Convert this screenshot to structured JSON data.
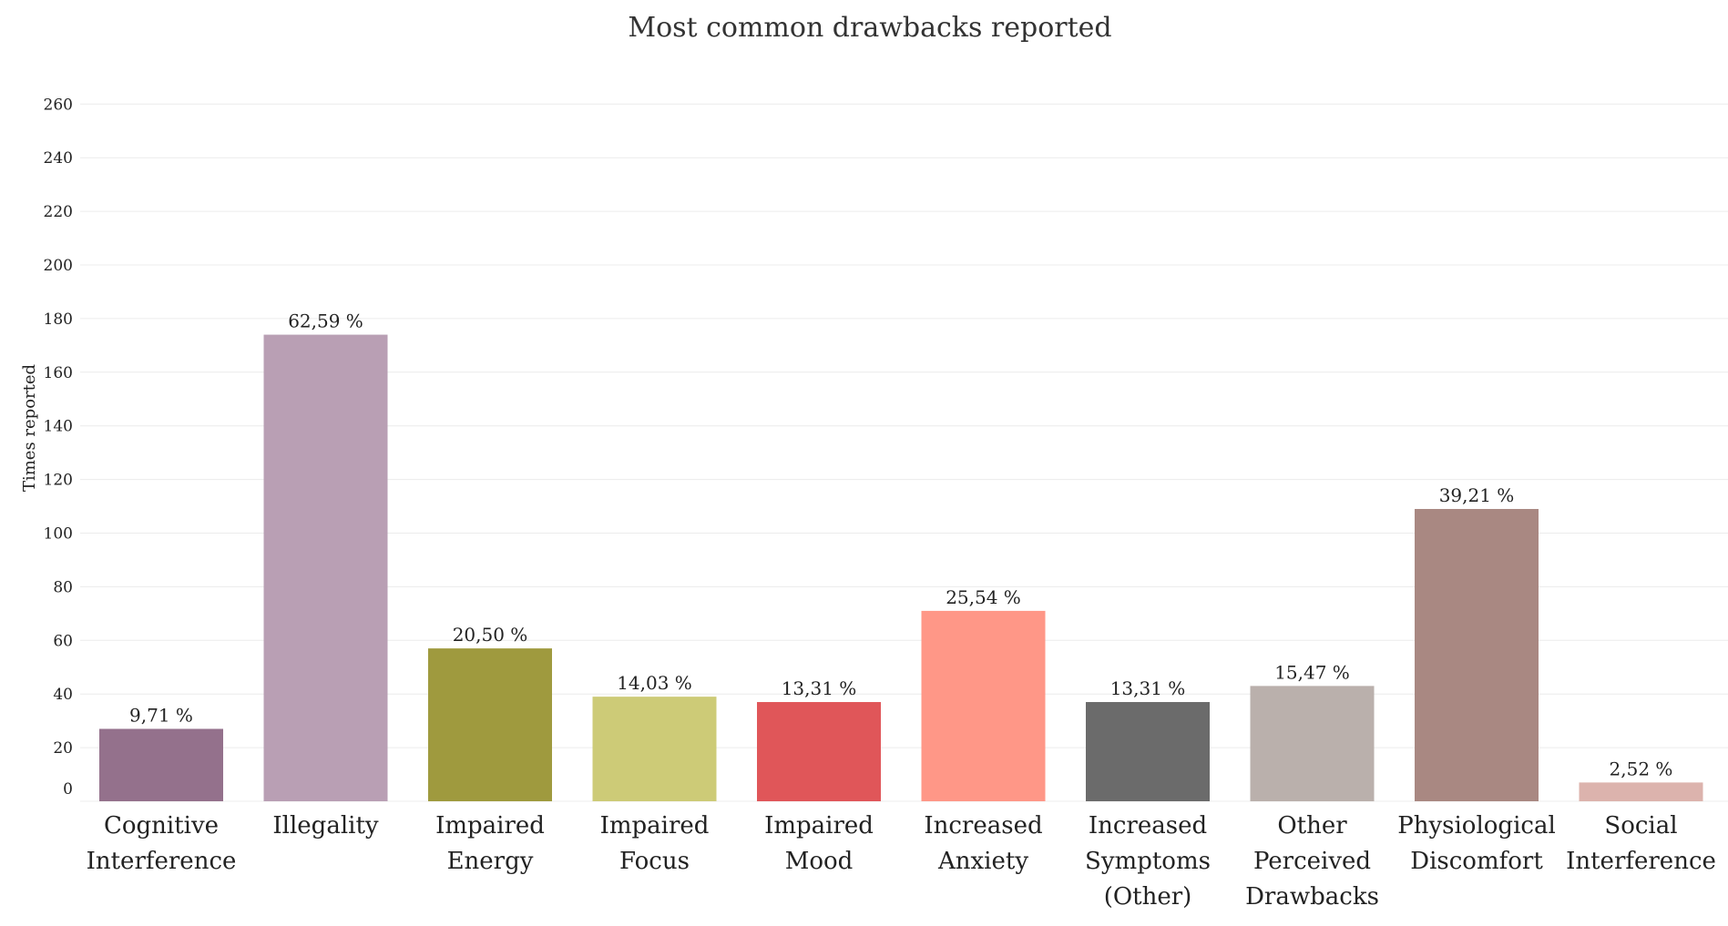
{
  "chart_data": {
    "type": "bar",
    "title": "Most common drawbacks reported",
    "xlabel": "",
    "ylabel": "Times reported",
    "ylim": [
      0,
      270
    ],
    "yticks": [
      0,
      20,
      40,
      60,
      80,
      100,
      120,
      140,
      160,
      180,
      200,
      220,
      240,
      260
    ],
    "grid": true,
    "legend": "none",
    "categories": [
      [
        "Cognitive",
        "Interference"
      ],
      [
        "Illegality"
      ],
      [
        "Impaired",
        "Energy"
      ],
      [
        "Impaired",
        "Focus"
      ],
      [
        "Impaired",
        "Mood"
      ],
      [
        "Increased",
        "Anxiety"
      ],
      [
        "Increased",
        "Symptoms",
        "(Other)"
      ],
      [
        "Other",
        "Perceived",
        "Drawbacks"
      ],
      [
        "Physiological",
        "Discomfort"
      ],
      [
        "Social",
        "Interference"
      ]
    ],
    "values": [
      27,
      174,
      57,
      39,
      37,
      71,
      37,
      43,
      109,
      7
    ],
    "labels": [
      "9,71 %",
      "62,59 %",
      "20,50 %",
      "14,03 %",
      "13,31 %",
      "25,54 %",
      "13,31 %",
      "15,47 %",
      "39,21 %",
      "2,52 %"
    ],
    "colors": [
      "#94718c",
      "#b99fb4",
      "#9f9a3e",
      "#cdcb77",
      "#e05659",
      "#ff9787",
      "#6b6b6b",
      "#bab0ac",
      "#a98882",
      "#dcb3ad"
    ]
  }
}
